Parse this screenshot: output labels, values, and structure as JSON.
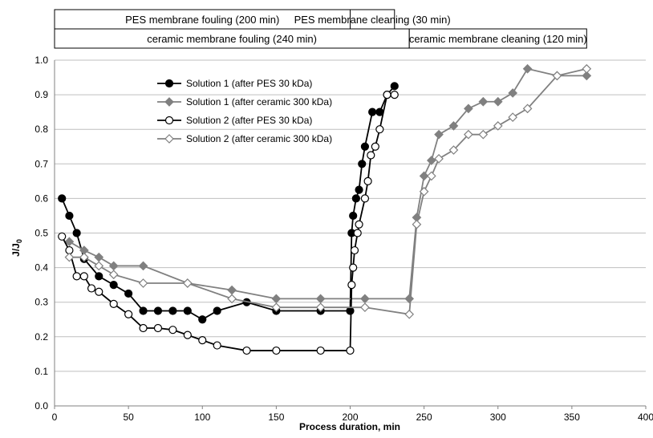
{
  "chart_data": {
    "type": "line",
    "xlabel": "Process duration, min",
    "ylabel": "J/J",
    "ylabel_subscript": "0",
    "xlim": [
      0,
      400
    ],
    "ylim": [
      0.0,
      1.0
    ],
    "xticks": [
      0,
      50,
      100,
      150,
      200,
      250,
      300,
      350,
      400
    ],
    "yticks": [
      0.0,
      0.1,
      0.2,
      0.3,
      0.4,
      0.5,
      0.6,
      0.7,
      0.8,
      0.9,
      1.0
    ],
    "ytick_labels": [
      "0.0",
      "0.1",
      "0.2",
      "0.3",
      "0.4",
      "0.5",
      "0.6",
      "0.7",
      "0.8",
      "0.9",
      "1.0"
    ],
    "grid": "horizontal",
    "legend_position": "top-center",
    "phase_bars": [
      {
        "row": 1,
        "label": "PES membrane fouling (200 min)",
        "x_start": 0,
        "x_end": 200
      },
      {
        "row": 1,
        "label": "PES membrane cleaning (30 min)",
        "x_start": 200,
        "x_end": 230
      },
      {
        "row": 2,
        "label": "ceramic membrane fouling (240 min)",
        "x_start": 0,
        "x_end": 240
      },
      {
        "row": 2,
        "label": "ceramic membrane cleaning (120 min)",
        "x_start": 240,
        "x_end": 360
      }
    ],
    "series": [
      {
        "name": "Solution 1 (after PES 30 kDa)",
        "color": "#000000",
        "marker": "circle-filled",
        "x": [
          5,
          10,
          15,
          20,
          30,
          40,
          50,
          60,
          70,
          80,
          90,
          100,
          110,
          130,
          150,
          180,
          200,
          201,
          202,
          204,
          206,
          208,
          210,
          215,
          220,
          225,
          230
        ],
        "y": [
          0.6,
          0.55,
          0.5,
          0.425,
          0.375,
          0.35,
          0.325,
          0.275,
          0.275,
          0.275,
          0.275,
          0.25,
          0.275,
          0.3,
          0.275,
          0.275,
          0.275,
          0.5,
          0.55,
          0.6,
          0.625,
          0.7,
          0.75,
          0.85,
          0.85,
          0.9,
          0.925
        ]
      },
      {
        "name": "Solution 1 (after ceramic 300 kDa)",
        "color": "#808080",
        "marker": "diamond-filled",
        "x": [
          10,
          20,
          30,
          40,
          60,
          90,
          120,
          150,
          180,
          210,
          240,
          245,
          250,
          255,
          260,
          270,
          280,
          290,
          300,
          310,
          320,
          340,
          360
        ],
        "y": [
          0.475,
          0.45,
          0.43,
          0.405,
          0.405,
          0.355,
          0.335,
          0.31,
          0.31,
          0.31,
          0.31,
          0.545,
          0.665,
          0.71,
          0.785,
          0.81,
          0.86,
          0.88,
          0.88,
          0.905,
          0.975,
          0.955,
          0.955
        ]
      },
      {
        "name": "Solution 2 (after PES 30 kDa)",
        "color": "#000000",
        "marker": "circle-open",
        "x": [
          5,
          10,
          15,
          20,
          25,
          30,
          40,
          50,
          60,
          70,
          80,
          90,
          100,
          110,
          130,
          150,
          180,
          200,
          201,
          202,
          203,
          205,
          206,
          210,
          212,
          214,
          217,
          220,
          225,
          230
        ],
        "y": [
          0.49,
          0.45,
          0.375,
          0.375,
          0.34,
          0.33,
          0.295,
          0.265,
          0.225,
          0.225,
          0.22,
          0.205,
          0.19,
          0.175,
          0.16,
          0.16,
          0.16,
          0.16,
          0.35,
          0.4,
          0.45,
          0.5,
          0.525,
          0.6,
          0.65,
          0.725,
          0.75,
          0.8,
          0.9,
          0.9
        ]
      },
      {
        "name": "Solution 2 (after ceramic 300 kDa)",
        "color": "#808080",
        "marker": "diamond-open",
        "x": [
          10,
          20,
          30,
          40,
          60,
          90,
          120,
          150,
          180,
          210,
          240,
          245,
          250,
          255,
          260,
          270,
          280,
          290,
          300,
          310,
          320,
          340,
          360
        ],
        "y": [
          0.43,
          0.43,
          0.405,
          0.38,
          0.355,
          0.355,
          0.31,
          0.285,
          0.285,
          0.285,
          0.265,
          0.525,
          0.62,
          0.665,
          0.715,
          0.74,
          0.785,
          0.785,
          0.81,
          0.835,
          0.86,
          0.955,
          0.975
        ]
      }
    ]
  }
}
